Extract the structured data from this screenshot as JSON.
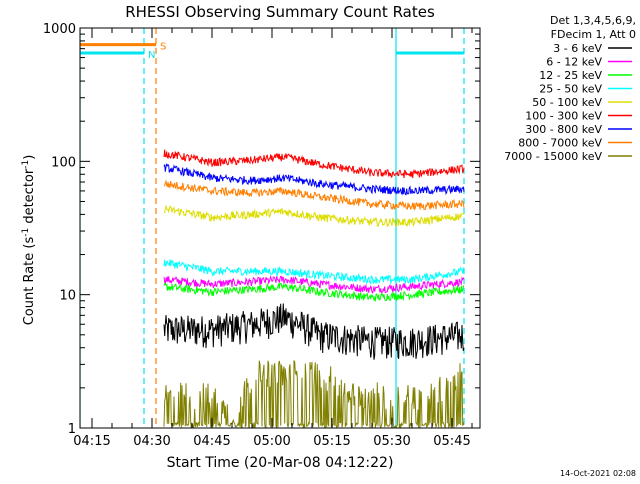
{
  "chart_data": {
    "type": "line",
    "title": "RHESSI Observing Summary Count Rates",
    "xlabel": "Start Time (20-Mar-08 04:12:22)",
    "ylabel": "Count Rate (s⁻¹ detector⁻¹)",
    "ylabel_parts": {
      "main": "Count Rate (s",
      "sup1": "-1",
      "mid": " detector",
      "sup2": "-1",
      "end": ")"
    },
    "y_scale": "log",
    "ylim": [
      1,
      1000
    ],
    "y_ticks": [
      1,
      10,
      100,
      1000
    ],
    "y_tick_labels": [
      "1",
      "10",
      "100",
      "1000"
    ],
    "xlim_minutes": [
      "04:12",
      "05:52"
    ],
    "x_ticks": [
      "04:15",
      "04:30",
      "04:45",
      "05:00",
      "05:15",
      "05:30",
      "05:45"
    ],
    "grid": false,
    "legend_placement": "right",
    "legend_header": [
      "Det 1,3,4,5,6,9,",
      "FDecim 1, Att 0"
    ],
    "footer_timestamp": "14-Oct-2021 02:08",
    "flags": [
      {
        "label": "S",
        "color": "#ff7f00",
        "start": "04:12",
        "end": "04:31",
        "level": 750
      },
      {
        "label": "N",
        "color": "#00e5ee",
        "start": "04:12",
        "end": "04:28",
        "level": 650
      },
      {
        "label": "",
        "color": "#00e5ee",
        "start": "05:31",
        "end": "05:48",
        "level": 650
      }
    ],
    "markers": [
      {
        "time": "04:12",
        "color": "#00e5ee",
        "style": "solid"
      },
      {
        "time": "04:28",
        "color": "#00e5ee",
        "style": "dashed"
      },
      {
        "time": "04:31",
        "color": "#ff7f00",
        "style": "dashed"
      },
      {
        "time": "05:31",
        "color": "#00e5ee",
        "style": "solid"
      },
      {
        "time": "05:48",
        "color": "#00e5ee",
        "style": "dashed"
      }
    ],
    "series": [
      {
        "name": "3 - 6 keV",
        "color": "#000000",
        "times": [
          "04:33",
          "04:45",
          "04:55",
          "05:03",
          "05:12",
          "05:25",
          "05:35",
          "05:48"
        ],
        "values": [
          5.5,
          5.5,
          6.0,
          6.8,
          5.0,
          4.5,
          4.5,
          5.0
        ]
      },
      {
        "name": "6 - 12 keV",
        "color": "#ff00ff",
        "times": [
          "04:33",
          "04:45",
          "04:55",
          "05:03",
          "05:12",
          "05:25",
          "05:35",
          "05:48"
        ],
        "values": [
          13,
          12,
          12.5,
          13,
          12,
          11,
          11.5,
          12.5
        ]
      },
      {
        "name": "12 - 25 keV",
        "color": "#00ff00",
        "times": [
          "04:33",
          "04:45",
          "04:55",
          "05:03",
          "05:12",
          "05:25",
          "05:35",
          "05:48"
        ],
        "values": [
          11.5,
          10.5,
          11,
          11.5,
          10.5,
          9.5,
          10,
          11
        ]
      },
      {
        "name": "25 - 50 keV",
        "color": "#00ffff",
        "times": [
          "04:33",
          "04:45",
          "04:55",
          "05:03",
          "05:12",
          "05:25",
          "05:35",
          "05:48"
        ],
        "values": [
          17.5,
          15,
          15,
          15,
          14,
          13,
          13,
          15
        ]
      },
      {
        "name": "50 - 100 keV",
        "color": "#dddd00",
        "times": [
          "04:33",
          "04:45",
          "04:55",
          "05:03",
          "05:12",
          "05:25",
          "05:35",
          "05:48"
        ],
        "values": [
          44,
          38,
          40,
          42,
          38,
          35,
          35,
          39
        ]
      },
      {
        "name": "100 - 300 keV",
        "color": "#ff0000",
        "times": [
          "04:33",
          "04:45",
          "04:55",
          "05:03",
          "05:12",
          "05:25",
          "05:35",
          "05:48"
        ],
        "values": [
          115,
          98,
          102,
          108,
          95,
          82,
          80,
          88
        ]
      },
      {
        "name": "300 - 800 keV",
        "color": "#0000ff",
        "times": [
          "04:33",
          "04:45",
          "04:55",
          "05:03",
          "05:12",
          "05:25",
          "05:35",
          "05:48"
        ],
        "values": [
          90,
          75,
          72,
          75,
          68,
          62,
          60,
          62
        ]
      },
      {
        "name": "800 - 7000 keV",
        "color": "#ff7f00",
        "times": [
          "04:33",
          "04:45",
          "04:55",
          "05:03",
          "05:12",
          "05:25",
          "05:35",
          "05:48"
        ],
        "values": [
          68,
          60,
          58,
          60,
          54,
          48,
          46,
          48
        ]
      },
      {
        "name": "7000 - 15000 keV",
        "color": "#808000",
        "times": [
          "04:33",
          "04:45",
          "04:50",
          "04:57",
          "05:05",
          "05:12",
          "05:20",
          "05:30",
          "05:40",
          "05:48"
        ],
        "values": [
          1.7,
          1.7,
          1.2,
          2.5,
          2.5,
          2.5,
          1.7,
          1.7,
          1.7,
          2.5
        ]
      }
    ]
  }
}
